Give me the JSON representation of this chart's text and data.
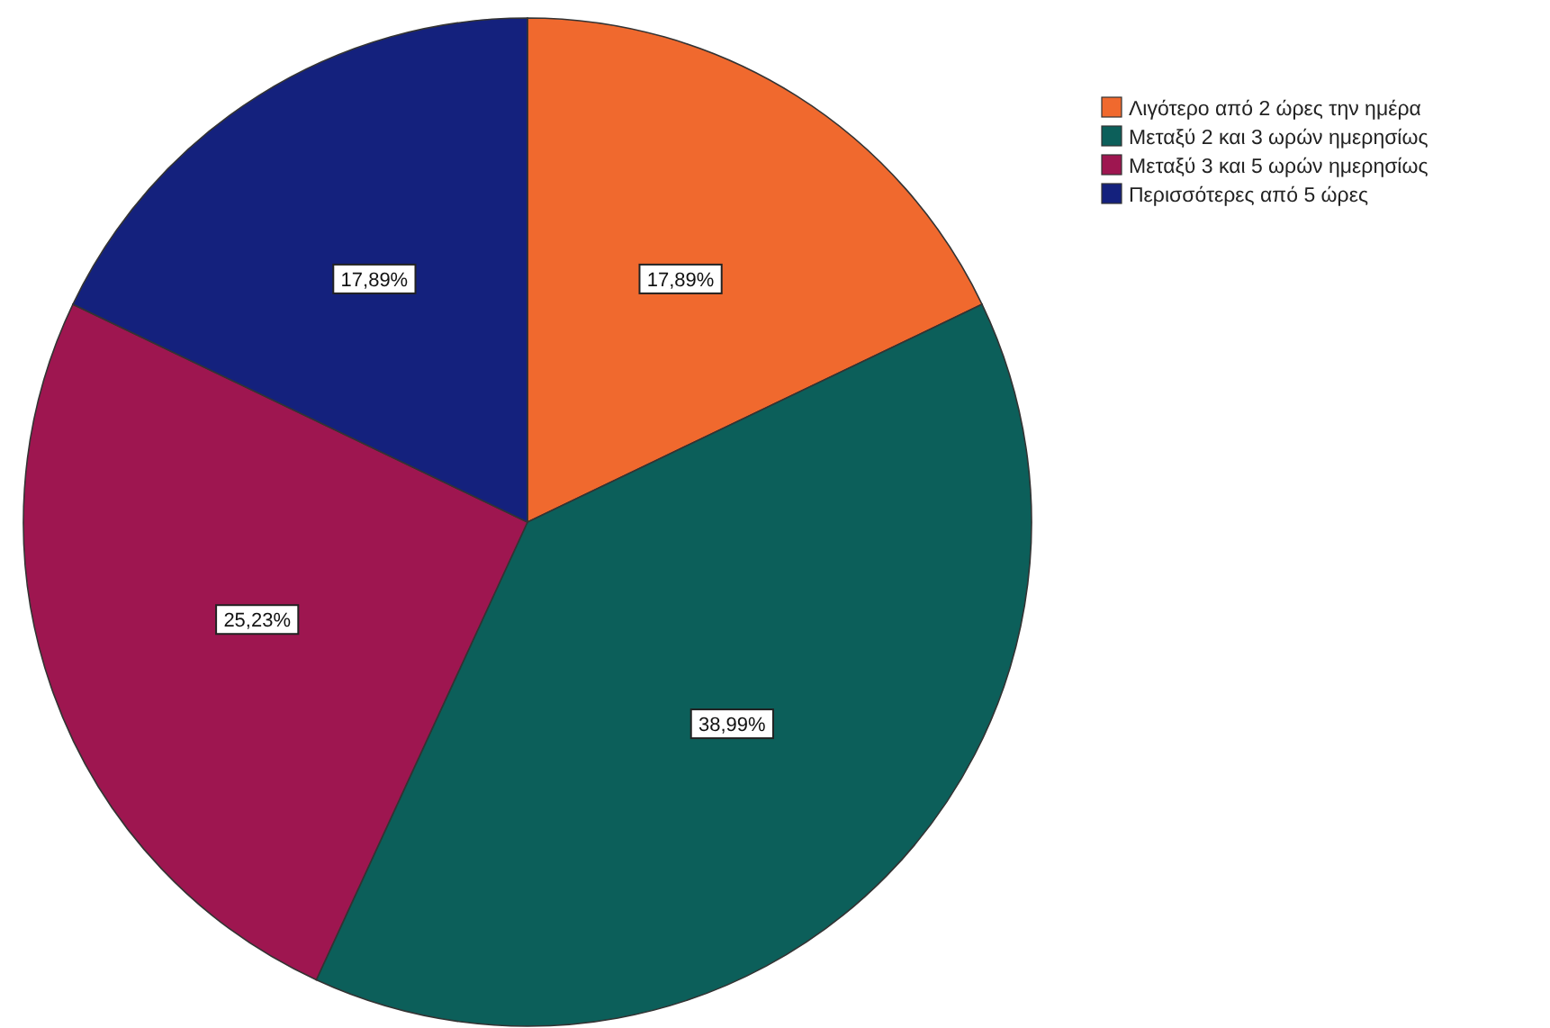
{
  "chart_data": {
    "type": "pie",
    "categories": [
      "Λιγότερο από 2 ώρες την ημέρα",
      "Μεταξύ 2 και 3 ωρών ημερησίως",
      "Μεταξύ 3 και 5 ωρών ημερησίως",
      "Περισσότερες από 5 ώρες"
    ],
    "values": [
      17.89,
      38.99,
      25.23,
      17.89
    ],
    "colors": [
      "#f0692e",
      "#0c5f5a",
      "#9e1650",
      "#14217d"
    ],
    "value_labels": [
      "17,89%",
      "38,99%",
      "25,23%",
      "17,89%"
    ],
    "legend": "top right"
  }
}
